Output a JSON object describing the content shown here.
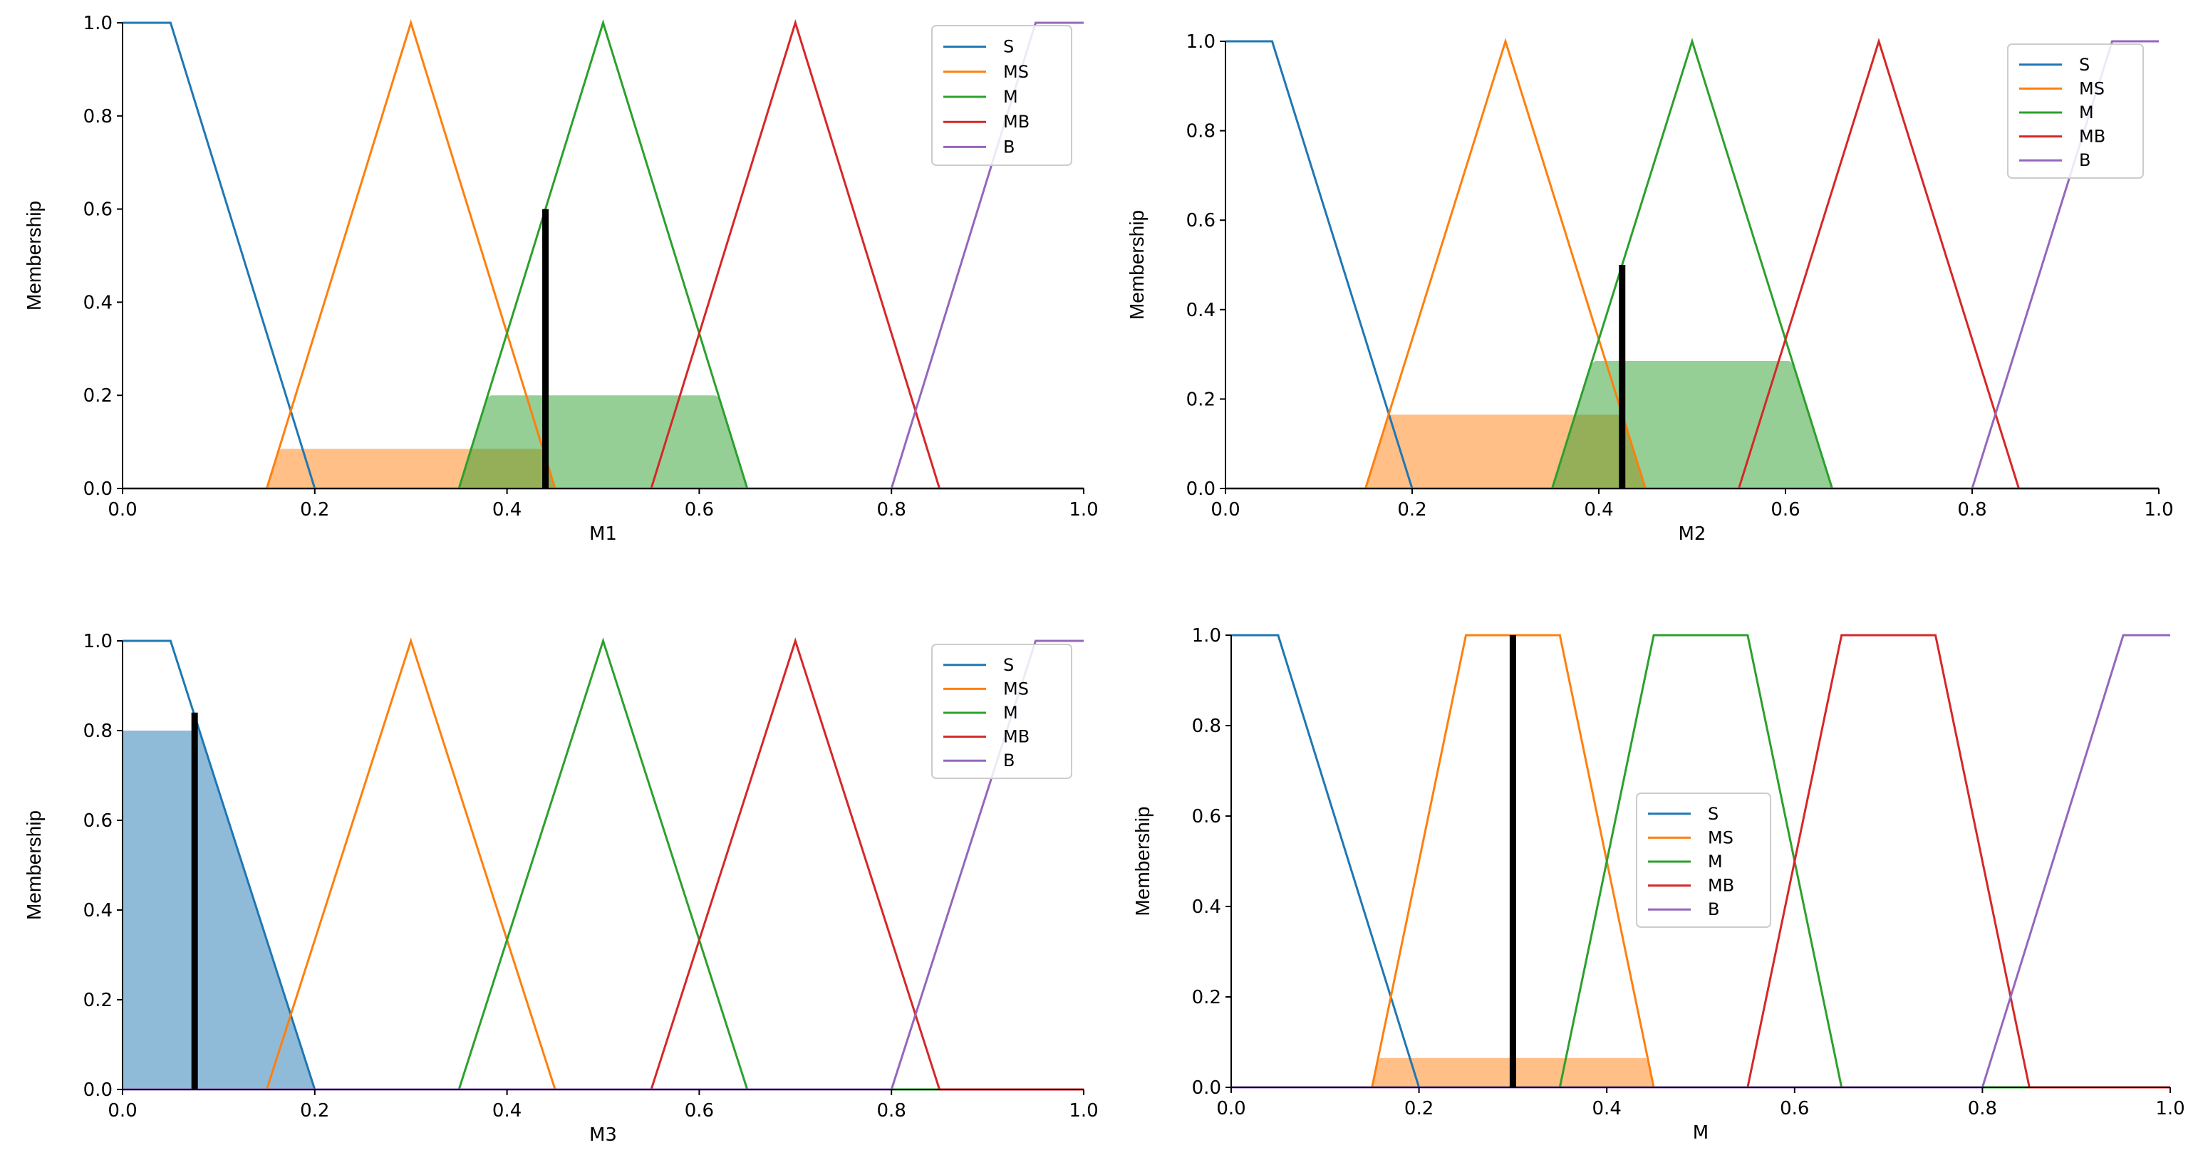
{
  "chart_data": [
    {
      "type": "line",
      "xlabel": "M1",
      "ylabel": "Membership",
      "xlim": [
        0,
        1
      ],
      "ylim": [
        0,
        1
      ],
      "xticks": [
        "0.0",
        "0.2",
        "0.4",
        "0.6",
        "0.8",
        "1.0"
      ],
      "yticks": [
        "0.0",
        "0.2",
        "0.4",
        "0.6",
        "0.8",
        "1.0"
      ],
      "legend_position": "top-right",
      "series": [
        {
          "name": "S",
          "color": "#1f77b4",
          "x": [
            0,
            0.05,
            0.2,
            1
          ],
          "y": [
            1,
            1,
            0,
            0
          ]
        },
        {
          "name": "MS",
          "color": "#ff7f0e",
          "x": [
            0,
            0.15,
            0.3,
            0.45,
            1
          ],
          "y": [
            0,
            0,
            1,
            0,
            0
          ]
        },
        {
          "name": "M",
          "color": "#2ca02c",
          "x": [
            0,
            0.35,
            0.5,
            0.65,
            1
          ],
          "y": [
            0,
            0,
            1,
            0,
            0
          ]
        },
        {
          "name": "MB",
          "color": "#d62728",
          "x": [
            0,
            0.55,
            0.7,
            0.85,
            1
          ],
          "y": [
            0,
            0,
            1,
            0,
            0
          ]
        },
        {
          "name": "B",
          "color": "#9467bd",
          "x": [
            0,
            0.8,
            0.95,
            1
          ],
          "y": [
            0,
            0,
            1,
            1
          ]
        }
      ],
      "activations": [
        {
          "series": "MS",
          "level": 0.085
        },
        {
          "series": "M",
          "level": 0.2
        }
      ],
      "crisp_value": {
        "x": 0.44,
        "y": 0.6
      }
    },
    {
      "type": "line",
      "xlabel": "M2",
      "ylabel": "Membership",
      "xlim": [
        0,
        1
      ],
      "ylim": [
        0,
        1
      ],
      "xticks": [
        "0.0",
        "0.2",
        "0.4",
        "0.6",
        "0.8",
        "1.0"
      ],
      "yticks": [
        "0.0",
        "0.2",
        "0.4",
        "0.6",
        "0.8",
        "1.0"
      ],
      "legend_position": "top-right",
      "series": [
        {
          "name": "S",
          "color": "#1f77b4",
          "x": [
            0,
            0.05,
            0.2,
            1
          ],
          "y": [
            1,
            1,
            0,
            0
          ]
        },
        {
          "name": "MS",
          "color": "#ff7f0e",
          "x": [
            0,
            0.15,
            0.3,
            0.45,
            1
          ],
          "y": [
            0,
            0,
            1,
            0,
            0
          ]
        },
        {
          "name": "M",
          "color": "#2ca02c",
          "x": [
            0,
            0.35,
            0.5,
            0.65,
            1
          ],
          "y": [
            0,
            0,
            1,
            0,
            0
          ]
        },
        {
          "name": "MB",
          "color": "#d62728",
          "x": [
            0,
            0.55,
            0.7,
            0.85,
            1
          ],
          "y": [
            0,
            0,
            1,
            0,
            0
          ]
        },
        {
          "name": "B",
          "color": "#9467bd",
          "x": [
            0,
            0.8,
            0.95,
            1
          ],
          "y": [
            0,
            0,
            1,
            1
          ]
        }
      ],
      "activations": [
        {
          "series": "MS",
          "level": 0.165
        },
        {
          "series": "M",
          "level": 0.285
        }
      ],
      "crisp_value": {
        "x": 0.425,
        "y": 0.5
      }
    },
    {
      "type": "line",
      "xlabel": "M3",
      "ylabel": "Membership",
      "xlim": [
        0,
        1
      ],
      "ylim": [
        0,
        1
      ],
      "xticks": [
        "0.0",
        "0.2",
        "0.4",
        "0.6",
        "0.8",
        "1.0"
      ],
      "yticks": [
        "0.0",
        "0.2",
        "0.4",
        "0.6",
        "0.8",
        "1.0"
      ],
      "legend_position": "top-right",
      "series": [
        {
          "name": "S",
          "color": "#1f77b4",
          "x": [
            0,
            0.05,
            0.2,
            1
          ],
          "y": [
            1,
            1,
            0,
            0
          ]
        },
        {
          "name": "MS",
          "color": "#ff7f0e",
          "x": [
            0,
            0.15,
            0.3,
            0.45,
            1
          ],
          "y": [
            0,
            0,
            1,
            0,
            0
          ]
        },
        {
          "name": "M",
          "color": "#2ca02c",
          "x": [
            0,
            0.35,
            0.5,
            0.65,
            1
          ],
          "y": [
            0,
            0,
            1,
            0,
            0
          ]
        },
        {
          "name": "MB",
          "color": "#d62728",
          "x": [
            0,
            0.55,
            0.7,
            0.85,
            1
          ],
          "y": [
            0,
            0,
            1,
            0,
            0
          ]
        },
        {
          "name": "B",
          "color": "#9467bd",
          "x": [
            0,
            0.8,
            0.95,
            1
          ],
          "y": [
            0,
            0,
            1,
            1
          ]
        }
      ],
      "activations": [
        {
          "series": "S",
          "level": 0.8
        }
      ],
      "crisp_value": {
        "x": 0.075,
        "y": 0.84
      }
    },
    {
      "type": "line",
      "xlabel": "M",
      "ylabel": "Membership",
      "xlim": [
        0,
        1
      ],
      "ylim": [
        0,
        1
      ],
      "xticks": [
        "0.0",
        "0.2",
        "0.4",
        "0.6",
        "0.8",
        "1.0"
      ],
      "yticks": [
        "0.0",
        "0.2",
        "0.4",
        "0.6",
        "0.8",
        "1.0"
      ],
      "legend_position": "center",
      "series": [
        {
          "name": "S",
          "color": "#1f77b4",
          "x": [
            0,
            0.05,
            0.2,
            1
          ],
          "y": [
            1,
            1,
            0,
            0
          ]
        },
        {
          "name": "MS",
          "color": "#ff7f0e",
          "x": [
            0,
            0.15,
            0.25,
            0.35,
            0.45,
            1
          ],
          "y": [
            0,
            0,
            1,
            1,
            0,
            0
          ]
        },
        {
          "name": "M",
          "color": "#2ca02c",
          "x": [
            0,
            0.35,
            0.45,
            0.55,
            0.65,
            1
          ],
          "y": [
            0,
            0,
            1,
            1,
            0,
            0
          ]
        },
        {
          "name": "MB",
          "color": "#d62728",
          "x": [
            0,
            0.55,
            0.65,
            0.75,
            0.85,
            1
          ],
          "y": [
            0,
            0,
            1,
            1,
            0,
            0
          ]
        },
        {
          "name": "B",
          "color": "#9467bd",
          "x": [
            0,
            0.8,
            0.95,
            1
          ],
          "y": [
            0,
            0,
            1,
            1
          ]
        }
      ],
      "activations": [
        {
          "series": "MS",
          "level": 0.065
        }
      ],
      "crisp_value": {
        "x": 0.3,
        "y": 1.0
      }
    }
  ]
}
